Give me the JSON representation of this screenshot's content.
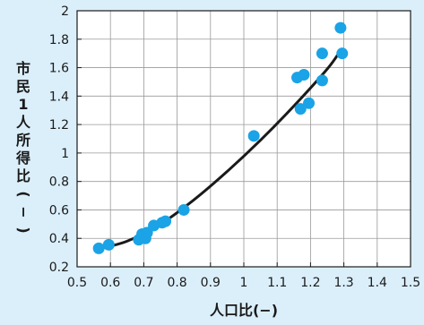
{
  "chart_data": {
    "type": "scatter",
    "title": "",
    "xlabel": "人口比(−)",
    "ylabel": "市民1人所得比(−)",
    "xlim": [
      0.5,
      1.5
    ],
    "ylim": [
      0.2,
      2
    ],
    "x_ticks": [
      "0.5",
      "0.6",
      "0.7",
      "0.8",
      "0.9",
      "1",
      "1.1",
      "1.2",
      "1.3",
      "1.4",
      "1.5"
    ],
    "y_ticks": [
      "0.2",
      "0.4",
      "0.6",
      "0.8",
      "1",
      "1.2",
      "1.4",
      "1.6",
      "1.8",
      "2"
    ],
    "grid": true,
    "series": [
      {
        "type": "scatter",
        "color": "#1aa3e6",
        "points": [
          [
            0.565,
            0.33
          ],
          [
            0.595,
            0.355
          ],
          [
            0.685,
            0.39
          ],
          [
            0.695,
            0.43
          ],
          [
            0.705,
            0.4
          ],
          [
            0.71,
            0.44
          ],
          [
            0.73,
            0.49
          ],
          [
            0.755,
            0.51
          ],
          [
            0.765,
            0.52
          ],
          [
            0.82,
            0.6
          ],
          [
            1.03,
            1.12
          ],
          [
            1.16,
            1.53
          ],
          [
            1.18,
            1.55
          ],
          [
            1.17,
            1.31
          ],
          [
            1.195,
            1.35
          ],
          [
            1.235,
            1.7
          ],
          [
            1.235,
            1.51
          ],
          [
            1.29,
            1.88
          ],
          [
            1.295,
            1.7
          ]
        ]
      },
      {
        "type": "line",
        "color": "#1a1a1a",
        "points": [
          [
            0.57,
            0.33
          ],
          [
            0.65,
            0.38
          ],
          [
            0.75,
            0.5
          ],
          [
            0.85,
            0.67
          ],
          [
            0.95,
            0.87
          ],
          [
            1.05,
            1.09
          ],
          [
            1.15,
            1.33
          ],
          [
            1.25,
            1.59
          ],
          [
            1.29,
            1.72
          ]
        ]
      }
    ]
  }
}
